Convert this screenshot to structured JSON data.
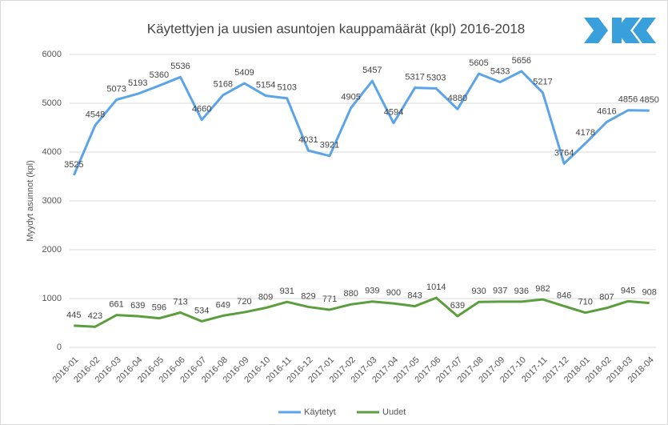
{
  "chart_data": {
    "type": "line",
    "title": "Käytettyjen ja uusien asuntojen kauppamäärät (kpl) 2016-2018",
    "y_label": "Myydyt asunnot (kpl)",
    "categories": [
      "2016-01",
      "2016-02",
      "2016-03",
      "2016-04",
      "2016-05",
      "2016-06",
      "2016-07",
      "2016-08",
      "2016-09",
      "2016-10",
      "2016-11",
      "2016-12",
      "2017-01",
      "2017-02",
      "2017-03",
      "2017-04",
      "2017-05",
      "2017-06",
      "2017-07",
      "2017-08",
      "2017-09",
      "2017-10",
      "2017-11",
      "2017-12",
      "2018-01",
      "2018-02",
      "2018-03",
      "2018-04"
    ],
    "series": [
      {
        "name": "Käytetyt",
        "color": "#5ba4e8",
        "values": [
          3525,
          4548,
          5073,
          5193,
          5360,
          5536,
          4660,
          5168,
          5409,
          5154,
          5103,
          4031,
          3921,
          4905,
          5457,
          4594,
          5317,
          5303,
          4880,
          5605,
          5433,
          5656,
          5217,
          3764,
          4178,
          4616,
          4856,
          4850
        ]
      },
      {
        "name": "Uudet",
        "color": "#5c9e3d",
        "values": [
          445,
          423,
          661,
          639,
          596,
          713,
          534,
          649,
          720,
          809,
          931,
          829,
          771,
          880,
          939,
          900,
          843,
          1014,
          639,
          930,
          937,
          936,
          982,
          846,
          710,
          807,
          945,
          908
        ]
      }
    ],
    "ylim": [
      0,
      6000
    ],
    "yticks": [
      0,
      1000,
      2000,
      3000,
      4000,
      5000,
      6000
    ],
    "grid": true,
    "legend": "bottom"
  }
}
